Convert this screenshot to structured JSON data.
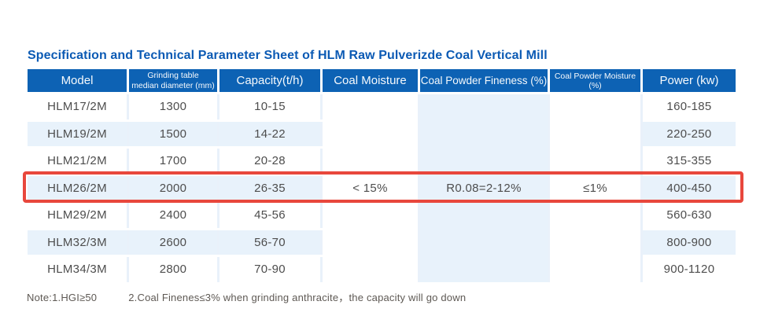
{
  "title": "Specification and Technical Parameter Sheet of HLM Raw Pulverizde Coal Vertical Mill",
  "colors": {
    "title_text": "#0b5ab4",
    "header_bg": "#0d62b4",
    "header_text": "#ffffff",
    "row_alt_bg": "#e8f2fb",
    "row_bg": "#ffffff",
    "body_text": "#4d4d4d",
    "highlight_border": "#e8473c",
    "note_text": "#5e5954"
  },
  "table": {
    "headers": {
      "model": "Model",
      "diameter_line1": "Grinding table",
      "diameter_line2": "median diameter (mm)",
      "capacity": "Capacity(t/h)",
      "coal_moisture": "Coal Moisture",
      "fineness": "Coal Powder Fineness (%)",
      "powder_moisture": "Coal Powder Moisture (%)",
      "power": "Power (kw)"
    },
    "rows": [
      {
        "model": "HLM17/2M",
        "diameter": "1300",
        "capacity": "10-15",
        "power": "160-185"
      },
      {
        "model": "HLM19/2M",
        "diameter": "1500",
        "capacity": "14-22",
        "power": "220-250"
      },
      {
        "model": "HLM21/2M",
        "diameter": "1700",
        "capacity": "20-28",
        "power": "315-355"
      },
      {
        "model": "HLM26/2M",
        "diameter": "2000",
        "capacity": "26-35",
        "power": "400-450",
        "highlighted": true
      },
      {
        "model": "HLM29/2M",
        "diameter": "2400",
        "capacity": "45-56",
        "power": "560-630"
      },
      {
        "model": "HLM32/3M",
        "diameter": "2600",
        "capacity": "56-70",
        "power": "800-900"
      },
      {
        "model": "HLM34/3M",
        "diameter": "2800",
        "capacity": "70-90",
        "power": "900-1120"
      }
    ],
    "merged": {
      "coal_moisture": "< 15%",
      "coal_powder_fineness": "R0.08=2-12%",
      "coal_powder_moisture": "≤1%"
    },
    "highlighted_model": "HLM26/2M"
  },
  "note": {
    "part1": "Note:1.HGI≥50",
    "part2": "2.Coal Finenes≤3% when grinding anthracite，the capacity will go down"
  }
}
